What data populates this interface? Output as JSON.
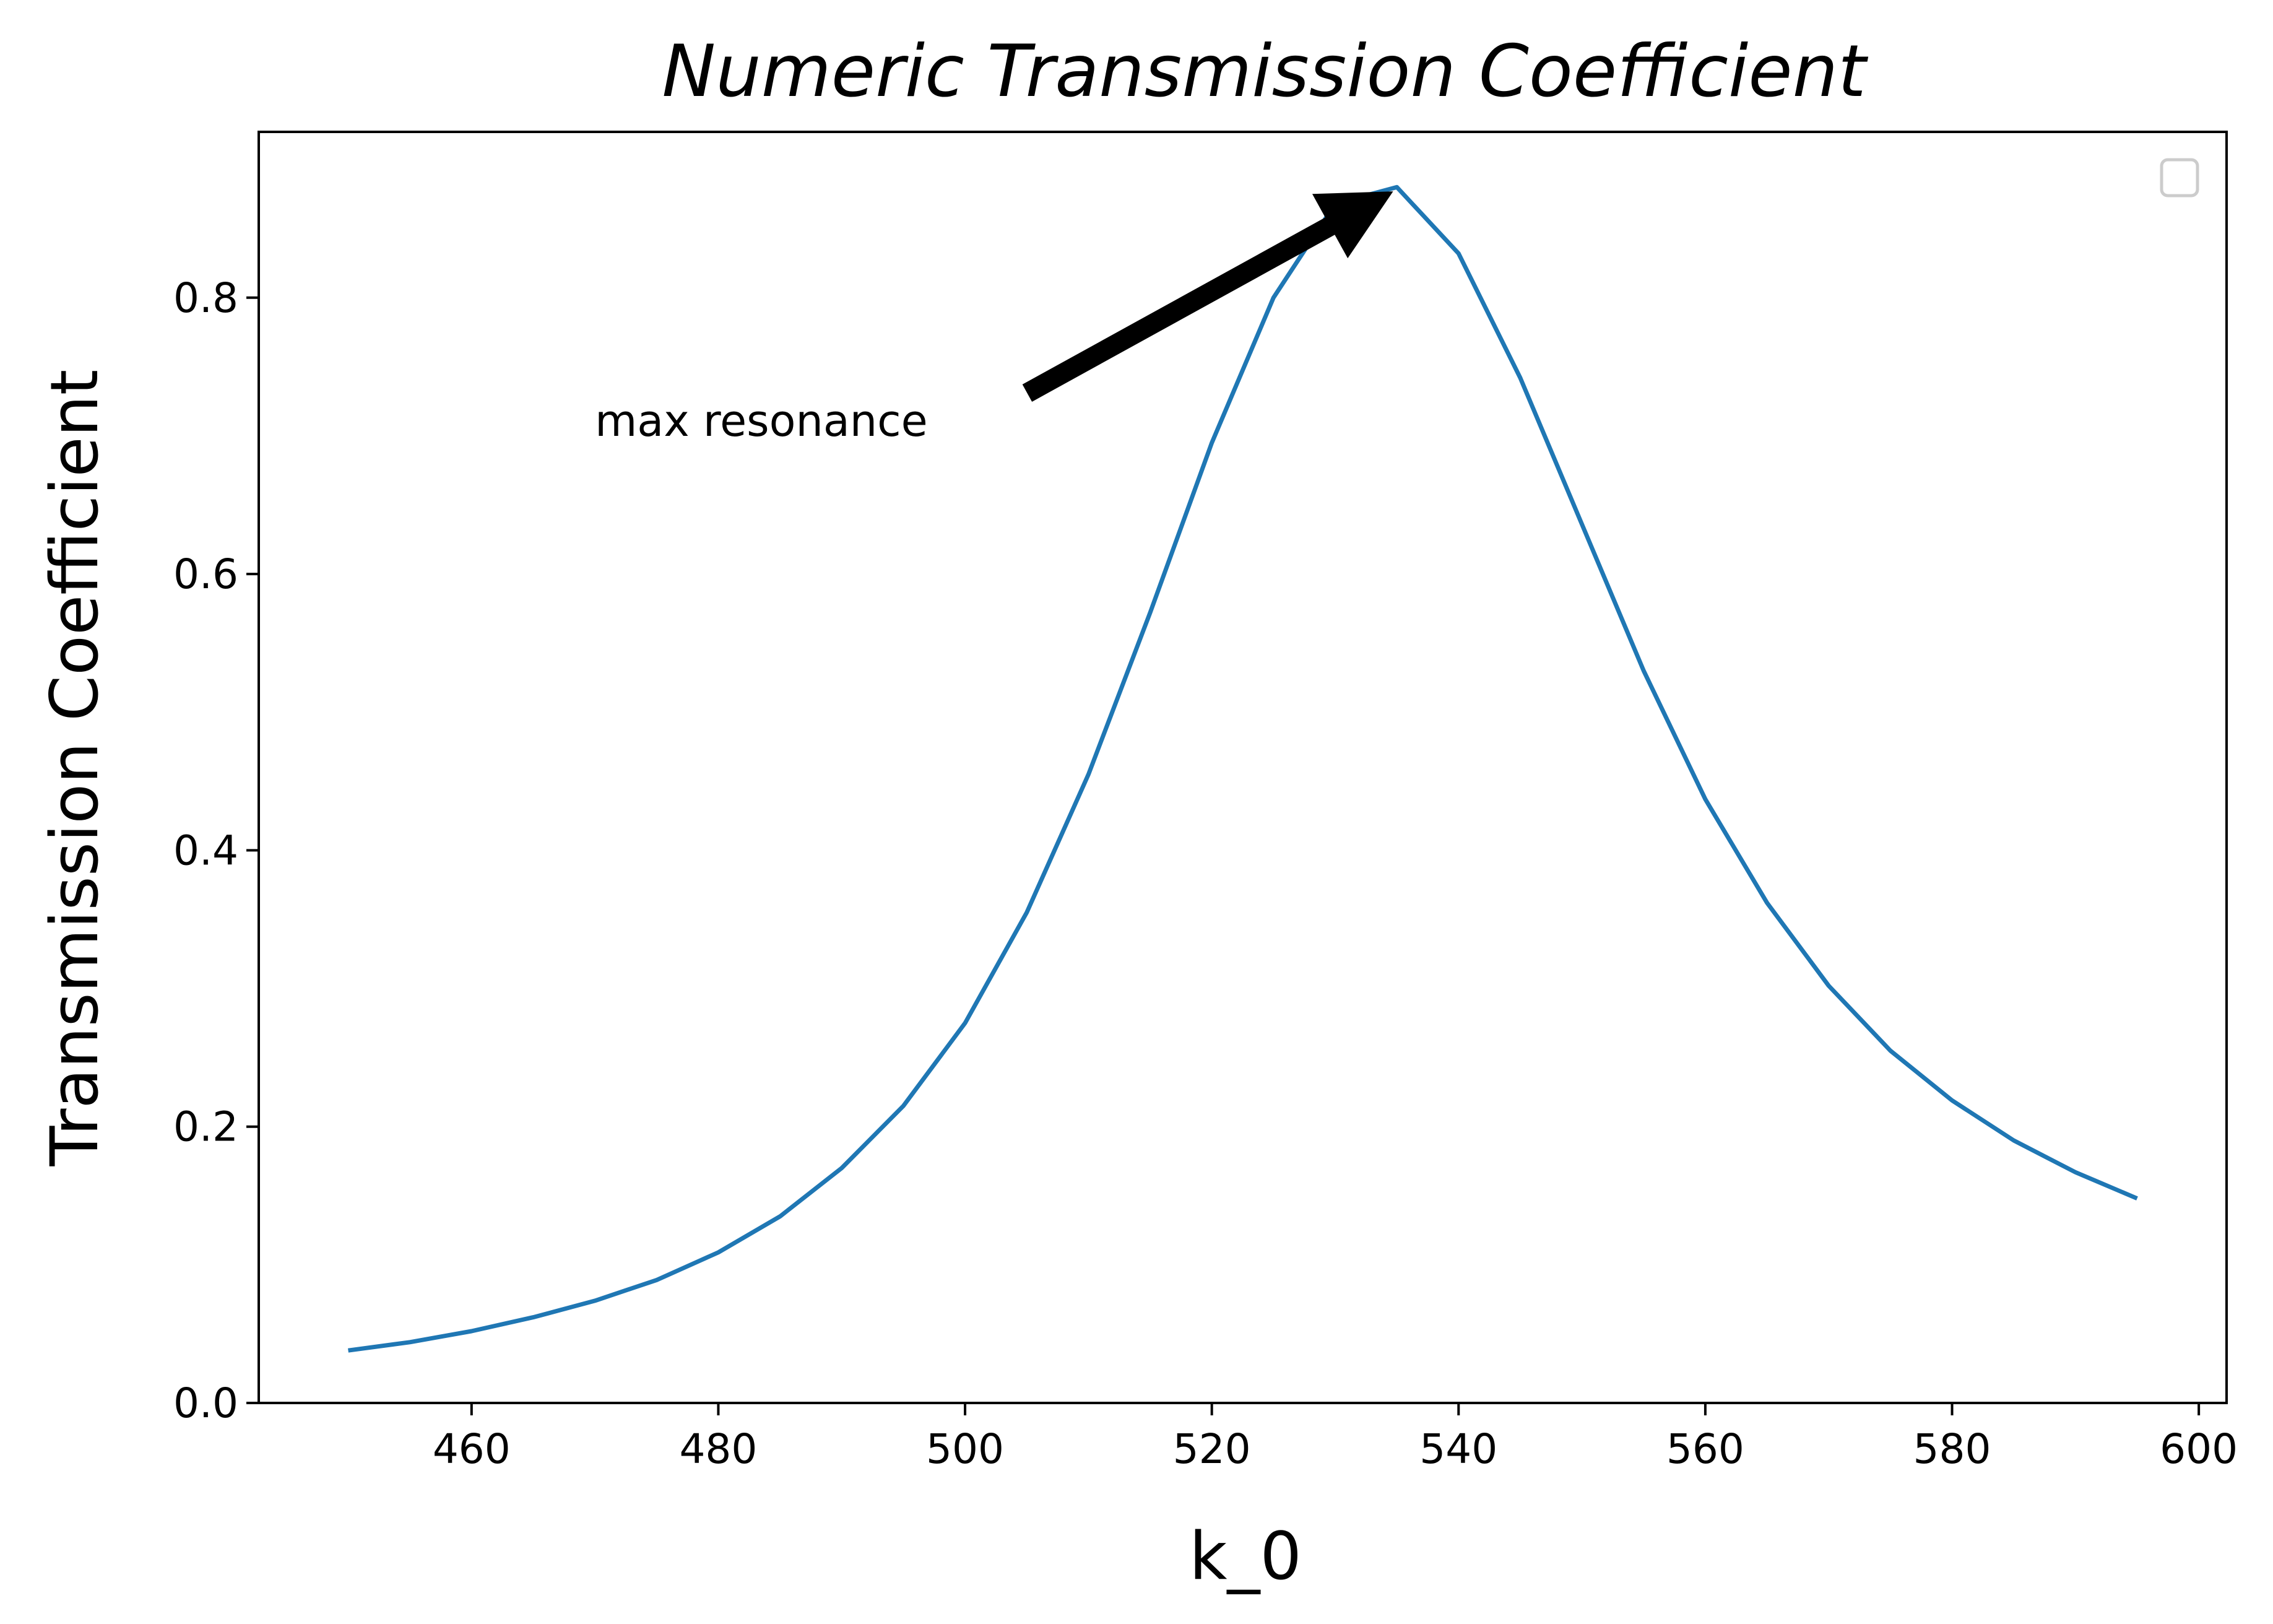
{
  "chart_data": {
    "type": "line",
    "title": "Numeric Transmission Coefficient",
    "xlabel": "k_0",
    "ylabel": "Transmission Coefficient",
    "xlim": [
      442.75,
      602.25
    ],
    "ylim": [
      -0.0,
      0.92
    ],
    "xticks": [
      460,
      480,
      500,
      520,
      540,
      560,
      580,
      600
    ],
    "yticks": [
      0.0,
      0.2,
      0.4,
      0.6,
      0.8
    ],
    "xtick_labels": [
      "460",
      "480",
      "500",
      "520",
      "540",
      "560",
      "580",
      "600"
    ],
    "ytick_labels": [
      "0.0",
      "0.2",
      "0.4",
      "0.6",
      "0.8"
    ],
    "grid": false,
    "legend": "top-right (empty)",
    "line_color": "#1f77b4",
    "series": [
      {
        "x": [
          450,
          455,
          460,
          465,
          470,
          475,
          480,
          485,
          490,
          495,
          500,
          505,
          510,
          515,
          520,
          525,
          530,
          535,
          540,
          545,
          550,
          555,
          560,
          565,
          570,
          575,
          580,
          585,
          590,
          595
        ],
        "values": [
          0.038,
          0.044,
          0.052,
          0.062,
          0.074,
          0.089,
          0.109,
          0.135,
          0.17,
          0.215,
          0.275,
          0.355,
          0.455,
          0.572,
          0.695,
          0.8,
          0.868,
          0.88,
          0.832,
          0.742,
          0.636,
          0.53,
          0.437,
          0.362,
          0.302,
          0.255,
          0.219,
          0.19,
          0.167,
          0.148
        ]
      }
    ],
    "annotations": [
      {
        "text": "max resonance",
        "xy": [
          534.5,
          0.876
        ],
        "xytext": [
          470,
          0.7
        ]
      }
    ]
  }
}
